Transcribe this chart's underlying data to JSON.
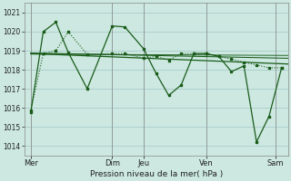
{
  "bg_color": "#cce8e0",
  "grid_color": "#aacccc",
  "line_color": "#1a5c1a",
  "xlabel": "Pression niveau de la mer( hPa )",
  "ylim": [
    1013.5,
    1021.5
  ],
  "yticks": [
    1014,
    1015,
    1016,
    1017,
    1018,
    1019,
    1020,
    1021
  ],
  "xlim": [
    0,
    21
  ],
  "xtick_labels": [
    "Mer",
    "Dim",
    "Jeu",
    "Ven",
    "Sam"
  ],
  "xtick_positions": [
    0.5,
    7,
    9.5,
    14.5,
    20
  ],
  "vlines": [
    0.5,
    7,
    9.5,
    14.5,
    20
  ],
  "series": [
    {
      "x": [
        0.5,
        1.5,
        2.5,
        3.5,
        5.0,
        7.0,
        8.0,
        9.5,
        10.5,
        11.5,
        12.5,
        13.5,
        14.5,
        15.5,
        16.5,
        17.5,
        18.5,
        19.5,
        20.5
      ],
      "y": [
        1015.75,
        1020.0,
        1020.5,
        1018.9,
        1017.0,
        1020.3,
        1020.25,
        1019.1,
        1017.8,
        1016.65,
        1017.2,
        1018.85,
        1018.85,
        1018.7,
        1017.9,
        1018.2,
        1014.2,
        1015.55,
        1018.1
      ],
      "style": "-",
      "marker": "s",
      "markersize": 2.0,
      "linewidth": 0.9
    },
    {
      "x": [
        0.5,
        21.0
      ],
      "y": [
        1018.85,
        1018.3
      ],
      "style": "-",
      "marker": null,
      "markersize": 0,
      "linewidth": 0.9
    },
    {
      "x": [
        0.5,
        21.0
      ],
      "y": [
        1018.88,
        1018.6
      ],
      "style": "-",
      "marker": null,
      "markersize": 0,
      "linewidth": 0.75
    },
    {
      "x": [
        0.5,
        21.0
      ],
      "y": [
        1018.82,
        1018.75
      ],
      "style": "-",
      "marker": null,
      "markersize": 0,
      "linewidth": 0.65
    },
    {
      "x": [
        0.5,
        1.5,
        2.5,
        3.5,
        5.0,
        7.0,
        8.0,
        9.5,
        10.5,
        11.5,
        12.5,
        13.5,
        14.5,
        15.5,
        16.5,
        17.5,
        18.5,
        19.5,
        20.5
      ],
      "y": [
        1015.85,
        1018.85,
        1019.0,
        1020.0,
        1018.8,
        1018.85,
        1018.85,
        1018.6,
        1018.7,
        1018.5,
        1018.85,
        1018.85,
        1018.85,
        1018.7,
        1018.55,
        1018.4,
        1018.25,
        1018.1,
        1018.1
      ],
      "style": ":",
      "marker": "s",
      "markersize": 1.8,
      "linewidth": 0.8
    }
  ]
}
